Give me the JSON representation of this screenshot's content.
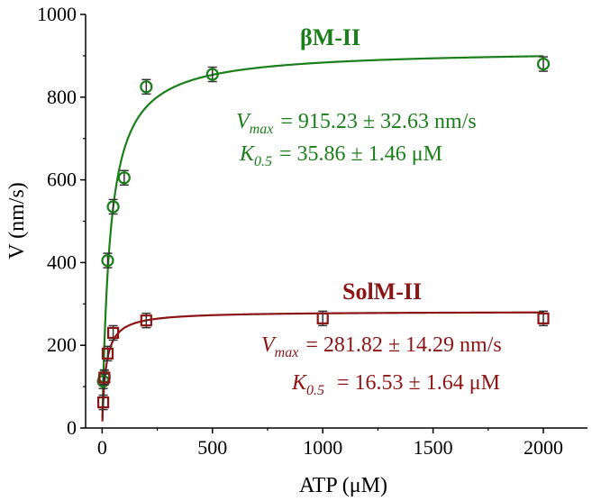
{
  "chart_data": {
    "type": "scatter",
    "xlabel": "ATP (μM)",
    "ylabel": "V (nm/s)",
    "xlim": [
      -75,
      2200
    ],
    "ylim": [
      0,
      1000
    ],
    "xticks": [
      0,
      500,
      1000,
      1500,
      2000
    ],
    "yticks": [
      0,
      200,
      400,
      600,
      800,
      1000
    ],
    "series": [
      {
        "name": "βM-II",
        "color": "#1a7f1a",
        "marker": "circle",
        "x": [
          5,
          10,
          25,
          50,
          100,
          200,
          500,
          2000
        ],
        "y": [
          113,
          123,
          405,
          535,
          605,
          825,
          855,
          880
        ],
        "fit": {
          "vmax": 915.23,
          "k05": 35.86
        },
        "annotation": {
          "vmax_label": "V",
          "vmax_sub": "max",
          "vmax_text": "= 915.23 ± 32.63 nm/s",
          "k_label": "K",
          "k_sub": "0.5",
          "k_text": "= 35.86 ± 1.46 μM"
        }
      },
      {
        "name": "SolM-II",
        "color": "#8b1414",
        "marker": "square",
        "x": [
          5,
          10,
          25,
          50,
          200,
          1000,
          2000
        ],
        "y": [
          62,
          122,
          180,
          230,
          260,
          265,
          265
        ],
        "fit": {
          "vmax": 281.82,
          "k05": 16.53
        },
        "annotation": {
          "vmax_label": "V",
          "vmax_sub": "max",
          "vmax_text": "= 281.82 ± 14.29 nm/s",
          "k_label": "K",
          "k_sub": "0.5",
          "k_text": "= 16.53 ± 1.64 μM"
        }
      }
    ]
  }
}
